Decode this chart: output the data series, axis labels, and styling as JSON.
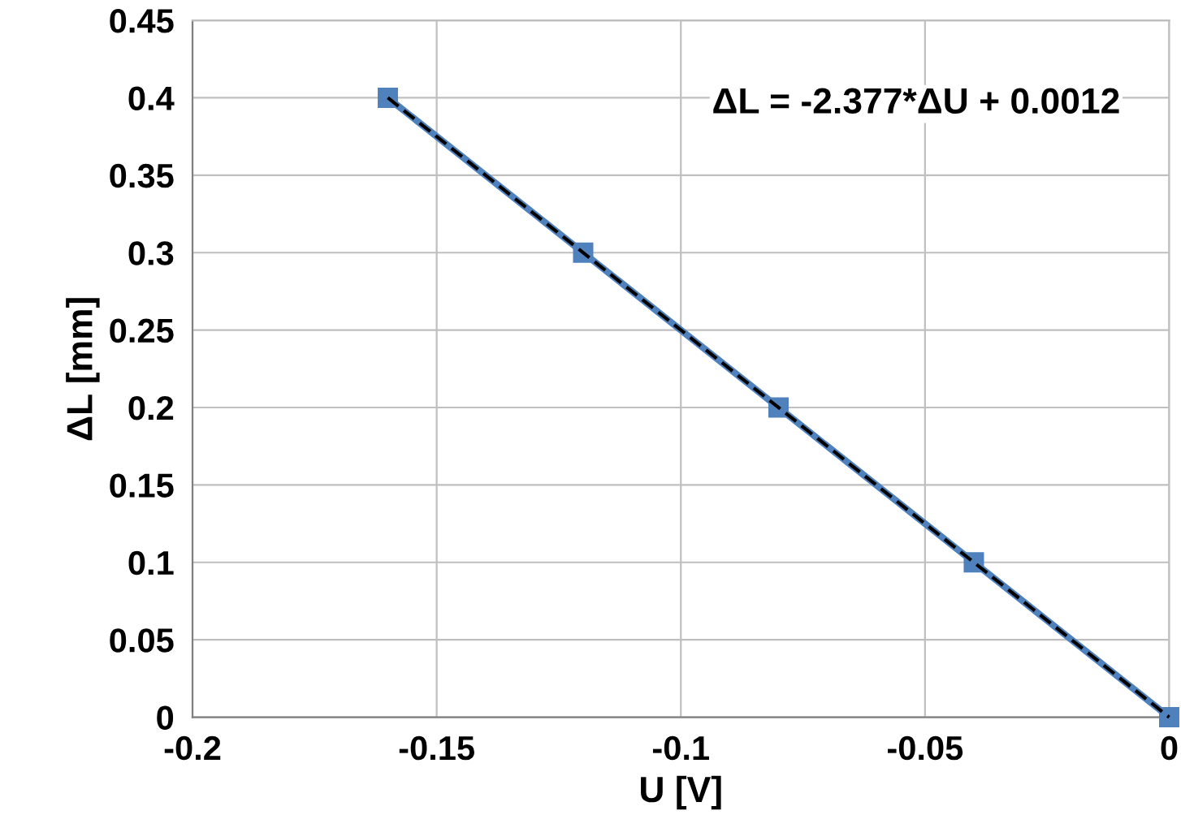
{
  "chart_data": {
    "type": "line",
    "xlabel": "U [V]",
    "ylabel": "ΔL [mm]",
    "series": [
      {
        "color": "#4f81bd",
        "x": [
          -0.16,
          -0.12,
          -0.08,
          -0.04,
          0
        ],
        "values": [
          0.4,
          0.3,
          0.2,
          0.1,
          0
        ],
        "marker": "square",
        "line_style": "solid"
      },
      {
        "color": "#000000",
        "x": [
          -0.16,
          0
        ],
        "values": [
          0.4,
          0
        ],
        "marker": "none",
        "line_style": "dashed"
      }
    ],
    "annotations": [
      "ΔL = -2.377*ΔU + 0.0012"
    ],
    "xlim": [
      -0.2,
      0
    ],
    "xticks": [
      -0.2,
      -0.15,
      -0.1,
      -0.05,
      0
    ],
    "ylim": [
      0,
      0.45
    ],
    "yticks": [
      0,
      0.05,
      0.1,
      0.15,
      0.2,
      0.25,
      0.3,
      0.35,
      0.4,
      0.45
    ],
    "grid": true
  }
}
